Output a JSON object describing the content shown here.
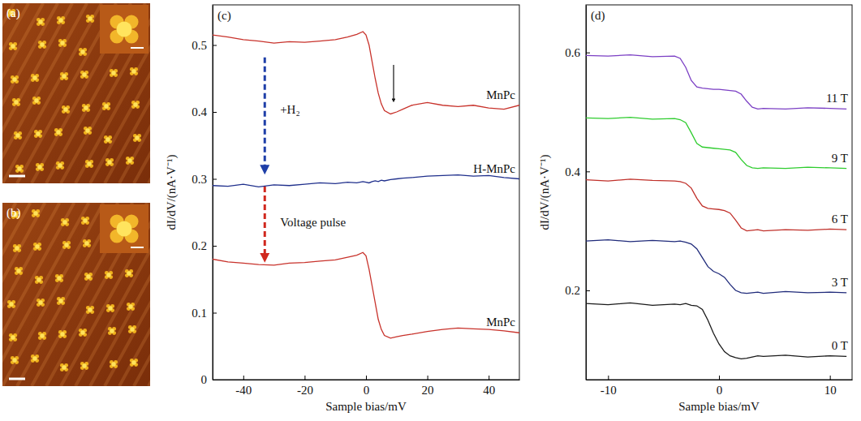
{
  "chart_data": [
    {
      "type": "image",
      "label": "(a)"
    },
    {
      "type": "image",
      "label": "(b)"
    },
    {
      "type": "line",
      "label": "(c)",
      "x_label": "Sample bias/mV",
      "y_label": "dI/dV/(nA·V⁻¹)",
      "xlim": [
        -50,
        50
      ],
      "ylim": [
        0,
        0.56
      ],
      "xticks": [
        -40,
        -20,
        0,
        20,
        40
      ],
      "yticks": [
        0,
        0.1,
        0.2,
        0.3,
        0.4,
        0.5
      ],
      "x": [
        -50,
        -45,
        -40,
        -35,
        -30,
        -25,
        -20,
        -15,
        -10,
        -6,
        -3,
        -1,
        0,
        1,
        2,
        3,
        4,
        5,
        6,
        8,
        10,
        12,
        15,
        20,
        25,
        30,
        35,
        40,
        45,
        50
      ],
      "series": [
        {
          "name": "MnPc",
          "color": "#c8322b",
          "values": [
            0.515,
            0.512,
            0.508,
            0.506,
            0.503,
            0.505,
            0.504,
            0.506,
            0.508,
            0.512,
            0.516,
            0.52,
            0.515,
            0.5,
            0.475,
            0.45,
            0.428,
            0.412,
            0.402,
            0.397,
            0.4,
            0.404,
            0.41,
            0.414,
            0.41,
            0.408,
            0.41,
            0.406,
            0.404,
            0.41
          ]
        },
        {
          "name": "H-MnPc",
          "color": "#1f2f8c",
          "values": [
            0.29,
            0.289,
            0.292,
            0.288,
            0.291,
            0.29,
            0.292,
            0.294,
            0.293,
            0.295,
            0.294,
            0.296,
            0.295,
            0.294,
            0.296,
            0.297,
            0.296,
            0.298,
            0.297,
            0.299,
            0.3,
            0.301,
            0.302,
            0.304,
            0.305,
            0.306,
            0.304,
            0.305,
            0.302,
            0.3
          ]
        },
        {
          "name": "MnPc",
          "color": "#c8322b",
          "values": [
            0.18,
            0.176,
            0.174,
            0.172,
            0.171,
            0.174,
            0.175,
            0.177,
            0.179,
            0.183,
            0.186,
            0.19,
            0.185,
            0.165,
            0.14,
            0.115,
            0.09,
            0.075,
            0.066,
            0.062,
            0.064,
            0.066,
            0.068,
            0.072,
            0.075,
            0.077,
            0.076,
            0.075,
            0.073,
            0.07
          ]
        }
      ],
      "annotations": [
        "+H₂",
        "Voltage pulse"
      ]
    },
    {
      "type": "line",
      "label": "(d)",
      "x_label": "Sample bias/mV",
      "y_label": "dI/dV/(nA·V⁻¹)",
      "xlim": [
        -12,
        12
      ],
      "ylim": [
        0.05,
        0.68
      ],
      "xticks": [
        -10,
        0,
        10
      ],
      "yticks": [
        0.2,
        0.4,
        0.6
      ],
      "x": [
        -12,
        -10,
        -8,
        -6,
        -4,
        -3.5,
        -3,
        -2.5,
        -2,
        -1.5,
        -1,
        -0.5,
        0,
        0.5,
        1,
        1.5,
        2,
        2.5,
        3,
        3.5,
        4,
        6,
        8,
        10,
        11.5
      ],
      "series": [
        {
          "name": "0 T",
          "color": "#1a1a1a",
          "values": [
            0.178,
            0.176,
            0.179,
            0.175,
            0.177,
            0.176,
            0.178,
            0.175,
            0.174,
            0.168,
            0.15,
            0.128,
            0.11,
            0.097,
            0.09,
            0.087,
            0.085,
            0.086,
            0.088,
            0.09,
            0.089,
            0.091,
            0.088,
            0.09,
            0.089
          ]
        },
        {
          "name": "3 T",
          "color": "#1f2a7a",
          "values": [
            0.283,
            0.285,
            0.282,
            0.284,
            0.282,
            0.283,
            0.281,
            0.278,
            0.27,
            0.255,
            0.24,
            0.232,
            0.228,
            0.222,
            0.21,
            0.2,
            0.196,
            0.195,
            0.196,
            0.197,
            0.195,
            0.198,
            0.196,
            0.197,
            0.196
          ]
        },
        {
          "name": "6 T",
          "color": "#c0302a",
          "values": [
            0.386,
            0.384,
            0.387,
            0.385,
            0.384,
            0.383,
            0.38,
            0.372,
            0.355,
            0.342,
            0.338,
            0.337,
            0.336,
            0.334,
            0.33,
            0.318,
            0.305,
            0.3,
            0.301,
            0.302,
            0.3,
            0.302,
            0.301,
            0.303,
            0.302
          ]
        },
        {
          "name": "9 T",
          "color": "#2ecc2e",
          "values": [
            0.49,
            0.489,
            0.491,
            0.488,
            0.489,
            0.487,
            0.482,
            0.465,
            0.447,
            0.441,
            0.44,
            0.439,
            0.438,
            0.437,
            0.436,
            0.432,
            0.42,
            0.41,
            0.406,
            0.405,
            0.406,
            0.405,
            0.407,
            0.406,
            0.405
          ]
        },
        {
          "name": "11 T",
          "color": "#7b3fc4",
          "values": [
            0.595,
            0.594,
            0.596,
            0.593,
            0.594,
            0.59,
            0.575,
            0.553,
            0.542,
            0.54,
            0.539,
            0.538,
            0.538,
            0.537,
            0.536,
            0.535,
            0.53,
            0.518,
            0.508,
            0.505,
            0.506,
            0.505,
            0.507,
            0.506,
            0.505
          ]
        }
      ]
    }
  ]
}
